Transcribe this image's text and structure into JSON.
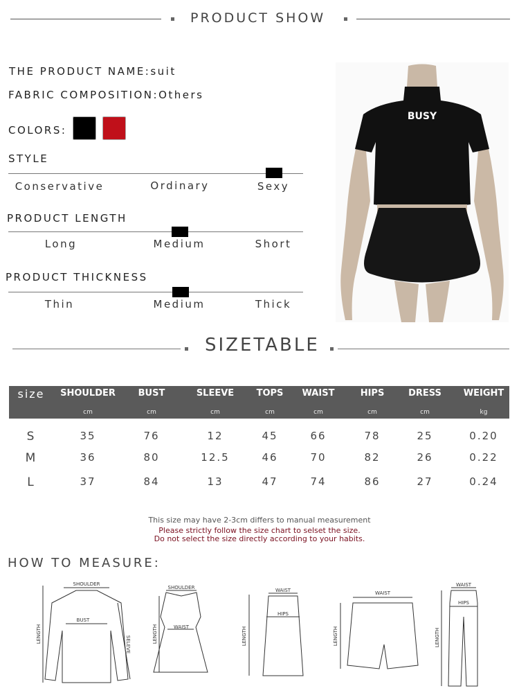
{
  "product_show": {
    "title": "PRODUCT SHOW"
  },
  "product": {
    "name_label": "THE PRODUCT NAME:",
    "name_value": "suit",
    "fabric_label": "FABRIC COMPOSITION:",
    "fabric_value": "Others",
    "colors_label": "COLORS:",
    "colors": [
      "#000000",
      "#c0101a"
    ],
    "style": {
      "label": "STYLE",
      "options": [
        "Conservative",
        "Ordinary",
        "Sexy"
      ],
      "selected": "Sexy"
    },
    "length": {
      "label": "PRODUCT LENGTH",
      "options": [
        "Long",
        "Medium",
        "Short"
      ],
      "selected": "Medium"
    },
    "thickness": {
      "label": "PRODUCT THICKNESS",
      "options": [
        "Thin",
        "Medium",
        "Thick"
      ],
      "selected": "Medium"
    },
    "shirt_print": "BUSY"
  },
  "sizetable": {
    "title": "SIZETABLE",
    "headers": [
      "size",
      "SHOULDER",
      "BUST",
      "SLEEVE",
      "TOPS",
      "WAIST",
      "HIPS",
      "DRESS",
      "WEIGHT"
    ],
    "units": [
      "",
      "cm",
      "cm",
      "cm",
      "cm",
      "cm",
      "cm",
      "cm",
      "kg"
    ],
    "rows": [
      [
        "S",
        "35",
        "76",
        "12",
        "45",
        "66",
        "78",
        "25",
        "0.20"
      ],
      [
        "M",
        "36",
        "80",
        "12.5",
        "46",
        "70",
        "82",
        "26",
        "0.22"
      ],
      [
        "L",
        "37",
        "84",
        "13",
        "47",
        "74",
        "86",
        "27",
        "0.24"
      ]
    ],
    "note1": "This size may have 2-3cm differs to manual measurement",
    "note2": "Please strictly follow the size chart to selset the size.",
    "note3": "Do not select the size directly according to your habits.",
    "note_colors": {
      "note1": "#555555",
      "warning": "#7a1020"
    }
  },
  "measure": {
    "title": "HOW TO MEASURE:",
    "labels": {
      "shoulder": "SHOULDER",
      "bust": "BUST",
      "length": "LENGTH",
      "sleeve": "SELEVE",
      "waist": "WAIST",
      "hips": "HIPS"
    }
  }
}
